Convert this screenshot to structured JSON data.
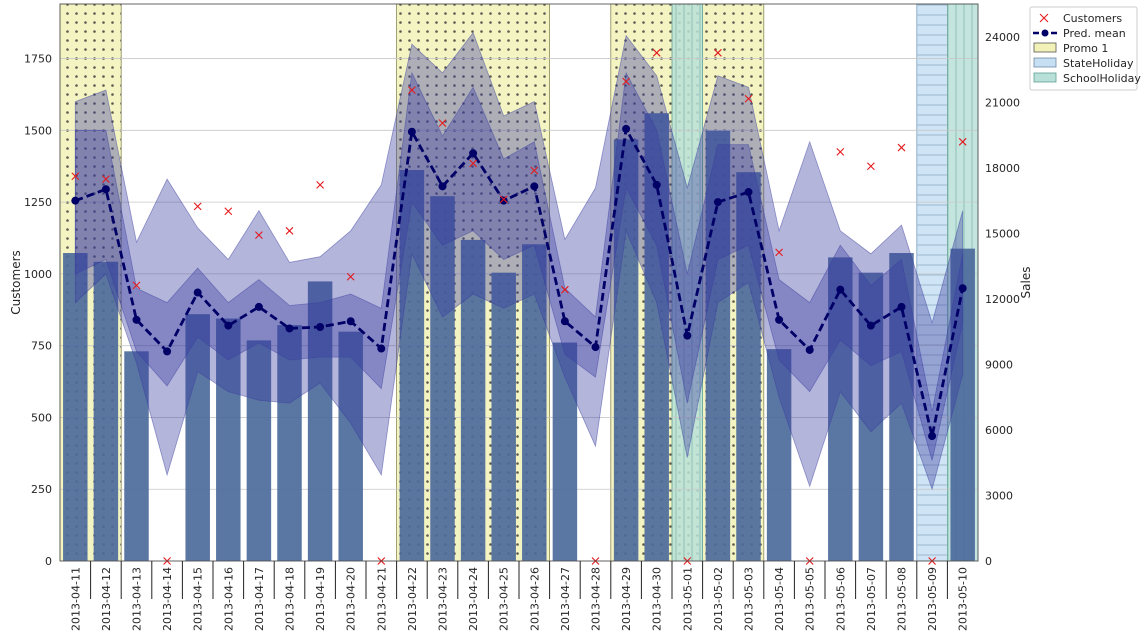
{
  "chart_data": {
    "type": "bar+line",
    "title": "",
    "xlabel": "",
    "ylabel_left": "Customers",
    "ylabel_right": "Sales",
    "ylim_left": [
      0,
      1940
    ],
    "ylim_right": [
      0,
      25500
    ],
    "yticks_left": [
      0,
      250,
      500,
      750,
      1000,
      1250,
      1500,
      1750
    ],
    "yticks_right": [
      0,
      3000,
      6000,
      9000,
      12000,
      15000,
      18000,
      21000,
      24000
    ],
    "grid": true,
    "legend_position": "top-right",
    "categories": [
      "2013-04-11",
      "2013-04-12",
      "2013-04-13",
      "2013-04-14",
      "2013-04-15",
      "2013-04-16",
      "2013-04-17",
      "2013-04-18",
      "2013-04-19",
      "2013-04-20",
      "2013-04-21",
      "2013-04-22",
      "2013-04-23",
      "2013-04-24",
      "2013-04-25",
      "2013-04-26",
      "2013-04-27",
      "2013-04-28",
      "2013-04-29",
      "2013-04-30",
      "2013-05-01",
      "2013-05-02",
      "2013-05-03",
      "2013-05-04",
      "2013-05-05",
      "2013-05-06",
      "2013-05-07",
      "2013-05-08",
      "2013-05-09",
      "2013-05-10"
    ],
    "sales_bars": [
      14100,
      13700,
      9600,
      0,
      11300,
      11100,
      10100,
      10800,
      12800,
      10500,
      0,
      17900,
      16700,
      14700,
      13200,
      14500,
      10000,
      0,
      19300,
      20500,
      0,
      19700,
      17800,
      9700,
      0,
      13900,
      13200,
      14100,
      0,
      14300
    ],
    "customers": [
      1340,
      1330,
      960,
      0,
      1235,
      1218,
      1135,
      1150,
      1310,
      990,
      0,
      1640,
      1525,
      1385,
      1260,
      1360,
      945,
      0,
      1670,
      1770,
      0,
      1770,
      1610,
      1075,
      0,
      1425,
      1375,
      1440,
      0,
      1460
    ],
    "pred_mean": [
      1255,
      1295,
      840,
      730,
      935,
      820,
      885,
      810,
      815,
      835,
      740,
      1495,
      1305,
      1420,
      1255,
      1305,
      835,
      745,
      1505,
      1310,
      785,
      1250,
      1285,
      840,
      735,
      945,
      820,
      885,
      435,
      950
    ],
    "inner_band_low": [
      1000,
      1050,
      730,
      610,
      780,
      700,
      760,
      700,
      710,
      710,
      600,
      1250,
      1100,
      1150,
      1050,
      1100,
      720,
      640,
      1300,
      1100,
      550,
      1050,
      1100,
      700,
      590,
      770,
      680,
      730,
      350,
      830
    ],
    "inner_band_high": [
      1500,
      1500,
      950,
      900,
      1020,
      900,
      980,
      890,
      900,
      930,
      880,
      1700,
      1480,
      1650,
      1400,
      1460,
      950,
      850,
      1700,
      1500,
      1000,
      1450,
      1450,
      980,
      900,
      1100,
      960,
      1050,
      520,
      1070
    ],
    "outer_band_low": [
      900,
      1000,
      690,
      300,
      660,
      590,
      560,
      550,
      620,
      480,
      300,
      1070,
      850,
      930,
      880,
      930,
      640,
      400,
      1150,
      900,
      360,
      900,
      970,
      570,
      260,
      590,
      450,
      550,
      250,
      650
    ],
    "outer_band_high": [
      1600,
      1640,
      1110,
      1330,
      1160,
      1050,
      1220,
      1040,
      1060,
      1150,
      1310,
      1800,
      1700,
      1840,
      1550,
      1600,
      1120,
      1300,
      1830,
      1690,
      1300,
      1690,
      1650,
      1150,
      1460,
      1150,
      1070,
      1170,
      830,
      1220
    ],
    "promo_ranges": [
      [
        0,
        1
      ],
      [
        11,
        15
      ],
      [
        18,
        22
      ]
    ],
    "state_holiday_ranges": [
      [
        28,
        28
      ]
    ],
    "school_holiday_ranges": [
      [
        20,
        20
      ],
      [
        29,
        29
      ]
    ],
    "legend": {
      "customers": "Customers",
      "pred_mean": "Pred. mean",
      "promo": "Promo 1",
      "state_holiday": "StateHoliday",
      "school_holiday": "SchoolHoliday"
    },
    "colors": {
      "bar": "#4c6a9b",
      "customers": "#e31a1c",
      "pred_mean": "#000066",
      "band": "#3a3da0",
      "promo": "#f2f2b8",
      "state_holiday": "#c7dff2",
      "school_holiday": "#b8e0d8",
      "grid": "#c8c8c8"
    }
  }
}
